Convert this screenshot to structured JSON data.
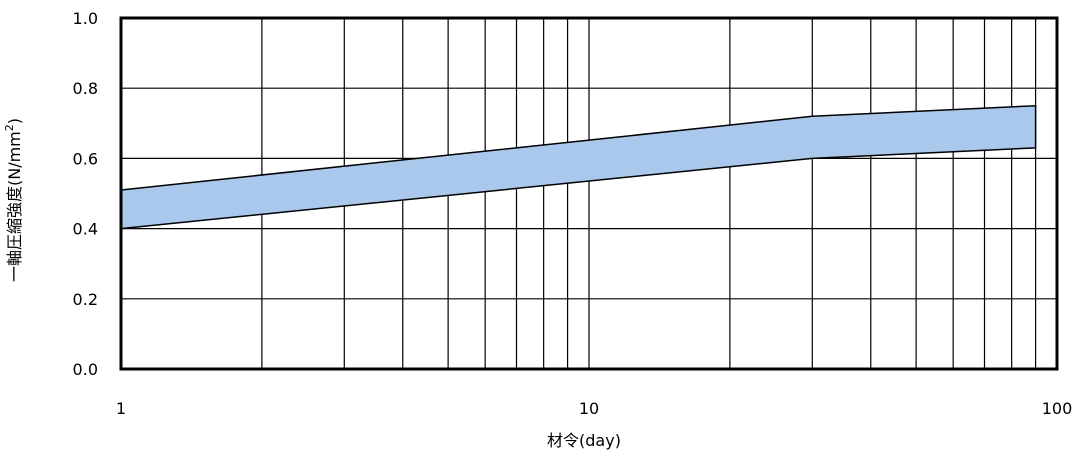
{
  "chart_data": {
    "type": "area",
    "title": "",
    "xlabel": "材令(day)",
    "ylabel_main": "一軸圧縮強度(N/mm",
    "ylabel_sup": "2",
    "ylabel_close": ")",
    "xscale": "log",
    "xlim": [
      1,
      100
    ],
    "ylim": [
      0,
      1.0
    ],
    "grid": true,
    "x_ticks": [
      "1",
      "10",
      "100"
    ],
    "y_ticks": [
      "0.0",
      "0.2",
      "0.4",
      "0.6",
      "0.8",
      "1.0"
    ],
    "band": {
      "fill": "#a9c8ec",
      "x": [
        1,
        30,
        90
      ],
      "upper": [
        0.51,
        0.72,
        0.75
      ],
      "lower": [
        0.4,
        0.6,
        0.63
      ]
    }
  }
}
